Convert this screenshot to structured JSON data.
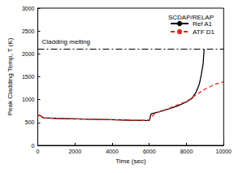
{
  "chart_data": {
    "type": "line",
    "title": "SCDAP/RELAP",
    "x_label": "Time (sec)",
    "y_label": "Peak Cladding Temp, T (K)",
    "xlim": [
      0,
      10000
    ],
    "xticks": [
      0,
      2000,
      4000,
      6000,
      8000,
      10000
    ],
    "ylim": [
      0,
      3000
    ],
    "yticks": [
      0,
      500,
      1000,
      1500,
      2000,
      2500,
      3000
    ],
    "grid": false,
    "legend": "upper right",
    "annotations": [
      {
        "text": "Cladding melting",
        "y": 2100,
        "line_style": "dashdot"
      }
    ],
    "series": [
      {
        "name": "Ref A1",
        "color": "#000000",
        "line_style": "solid",
        "x": [
          0,
          100,
          300,
          1000,
          2000,
          3000,
          4000,
          5000,
          5900,
          6000,
          6100,
          6500,
          7000,
          7500,
          8000,
          8300,
          8500,
          8700,
          8800,
          8900,
          8950
        ],
        "values": [
          640,
          660,
          600,
          590,
          580,
          570,
          560,
          550,
          545,
          545,
          690,
          730,
          790,
          860,
          950,
          1030,
          1150,
          1350,
          1550,
          1800,
          2100
        ]
      },
      {
        "name": "ATF D1",
        "color": "#e8261c",
        "line_style": "dashed",
        "x": [
          0,
          100,
          300,
          1000,
          2000,
          3000,
          4000,
          5000,
          5900,
          6000,
          6300,
          7000,
          7500,
          8000,
          8500,
          9000,
          9500,
          10000
        ],
        "values": [
          640,
          660,
          600,
          590,
          580,
          570,
          560,
          550,
          545,
          560,
          700,
          800,
          880,
          960,
          1100,
          1230,
          1330,
          1390
        ]
      }
    ]
  }
}
